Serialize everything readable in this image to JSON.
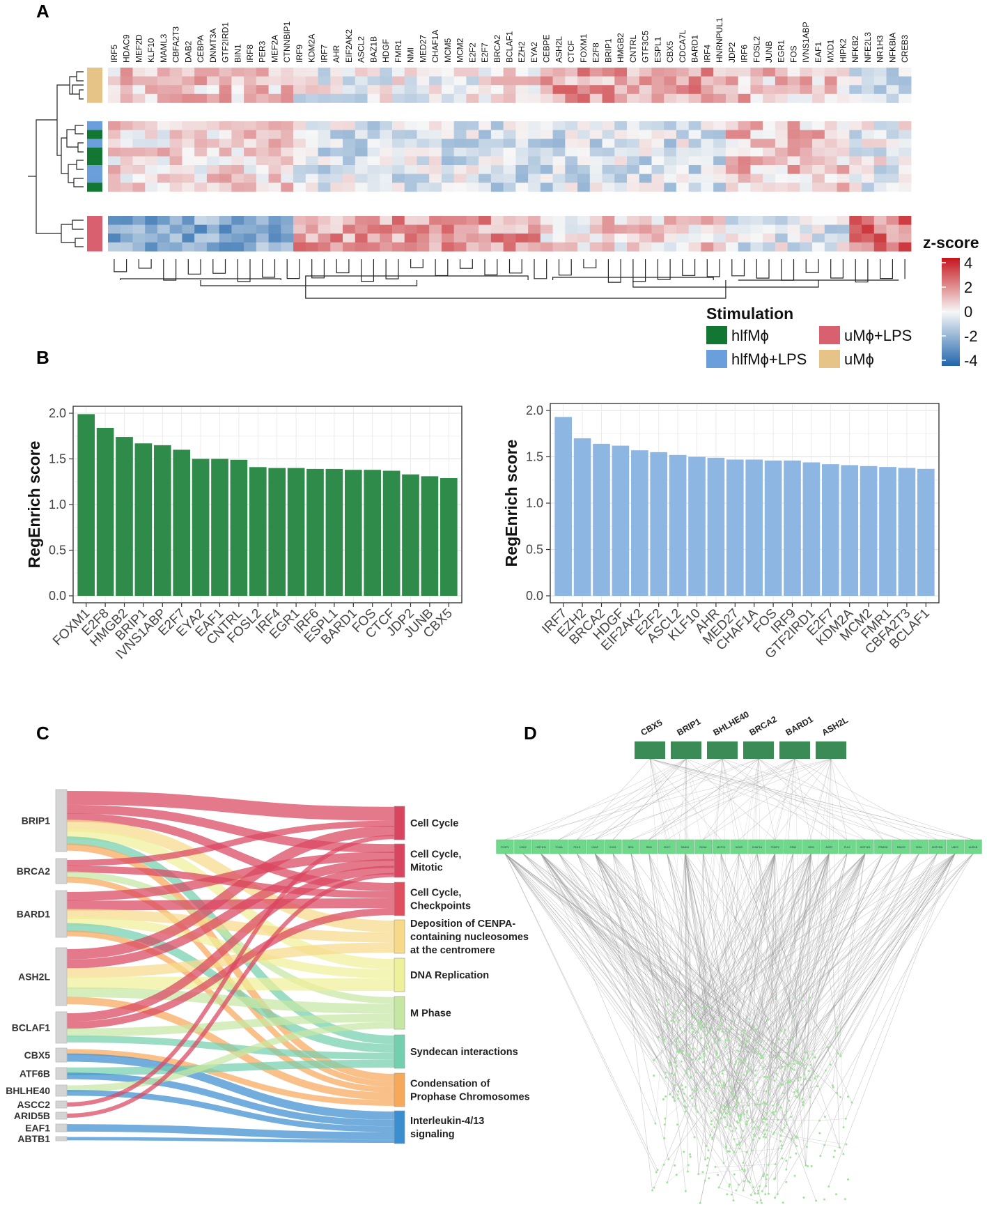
{
  "panels": {
    "a": "A",
    "b": "B",
    "c": "C",
    "d": "D"
  },
  "chart_data": [
    {
      "type": "heatmap",
      "panel": "A",
      "title": "",
      "genes": [
        "IRF5",
        "HDAC9",
        "MEF2D",
        "KLF10",
        "MAML3",
        "CBFA2T3",
        "DAB2",
        "CEBPA",
        "DNMT3A",
        "GTF2IRD1",
        "BIN1",
        "IRF8",
        "PER3",
        "MEF2A",
        "CTNNBIP1",
        "IRF9",
        "KDM2A",
        "IRF7",
        "AHR",
        "EIF2AK2",
        "ASCL2",
        "BAZ1B",
        "HDGF",
        "FMR1",
        "NMI",
        "MED27",
        "CHAF1A",
        "MCM5",
        "MCM2",
        "E2F2",
        "E2F7",
        "BRCA2",
        "BCLAF1",
        "EZH2",
        "EYA2",
        "CEBPE",
        "ASH2L",
        "CTCF",
        "FOXM1",
        "E2F8",
        "BRIP1",
        "HMGB2",
        "CNTRL",
        "GTF3C5",
        "ESPL1",
        "CBX5",
        "CDCA7L",
        "BARD1",
        "IRF4",
        "HNRNPUL1",
        "JDP2",
        "IRF6",
        "FOSL2",
        "JUNB",
        "EGR1",
        "FOS",
        "IVNS1ABP",
        "EAF1",
        "MXD1",
        "HIPK2",
        "NFKB2",
        "NFE2L3",
        "NR1H3",
        "NFKBIA",
        "CREB3"
      ],
      "sample_groups": [
        "uMϕ",
        "uMϕ",
        "uMϕ",
        "uMϕ",
        "hlfMϕ+LPS",
        "hlfMϕ",
        "hlfMϕ+LPS",
        "hlfMϕ",
        "hlfMϕ",
        "hlfMϕ+LPS",
        "hlfMϕ+LPS",
        "hlfMϕ",
        "uMϕ+LPS",
        "uMϕ+LPS",
        "uMϕ+LPS",
        "uMϕ+LPS"
      ],
      "colorbar_title": "z-score",
      "colorbar_ticks": [
        "4",
        "2",
        "0",
        "-2",
        "-4"
      ],
      "colorbar_range": [
        -4,
        4
      ],
      "colors": {
        "low": "#2166ac",
        "mid": "#f7f7f7",
        "high": "#c4161c"
      },
      "legend_title": "Stimulation",
      "legend": [
        {
          "label": "hlfMϕ",
          "color": "#117733"
        },
        {
          "label": "hlfMϕ+LPS",
          "color": "#6a9fdc"
        },
        {
          "label": "uMϕ+LPS",
          "color": "#d9606e"
        },
        {
          "label": "uMϕ",
          "color": "#e6c488"
        }
      ]
    },
    {
      "type": "bar",
      "panel": "B-left",
      "title": "",
      "xlabel": "",
      "ylabel": "RegEnrich score",
      "ylim": [
        0,
        2.0
      ],
      "yticks": [
        "0.0",
        "0.5",
        "1.0",
        "1.5",
        "2.0"
      ],
      "color": "#2e8b4a",
      "categories": [
        "FOXM1",
        "E2F8",
        "HMGB2",
        "BRIP1",
        "IVNS1ABP",
        "E2F7",
        "EYA2",
        "EAF1",
        "CNTRL",
        "FOSL2",
        "IRF4",
        "EGR1",
        "IRF6",
        "ESPL1",
        "BARD1",
        "FOS",
        "CTCF",
        "JDP2",
        "JUNB",
        "CBX5"
      ],
      "values": [
        1.99,
        1.84,
        1.74,
        1.67,
        1.65,
        1.6,
        1.5,
        1.5,
        1.49,
        1.41,
        1.4,
        1.4,
        1.39,
        1.39,
        1.38,
        1.38,
        1.37,
        1.33,
        1.31,
        1.29
      ]
    },
    {
      "type": "bar",
      "panel": "B-right",
      "title": "",
      "xlabel": "",
      "ylabel": "RegEnrich score",
      "ylim": [
        0,
        2.0
      ],
      "yticks": [
        "0.0",
        "0.5",
        "1.0",
        "1.5",
        "2.0"
      ],
      "color": "#8db6e3",
      "categories": [
        "IRF7",
        "EZH2",
        "BRCA2",
        "HDGF",
        "EIF2AK2",
        "E2F2",
        "ASCL2",
        "KLF10",
        "AHR",
        "MED27",
        "CHAF1A",
        "FOS",
        "IRF9",
        "GTF2IRD1",
        "E2F7",
        "KDM2A",
        "MCM2",
        "FMR1",
        "CBFA2T3",
        "BCLAF1"
      ],
      "values": [
        1.93,
        1.7,
        1.64,
        1.62,
        1.57,
        1.55,
        1.52,
        1.5,
        1.49,
        1.47,
        1.47,
        1.46,
        1.46,
        1.44,
        1.42,
        1.41,
        1.4,
        1.39,
        1.38,
        1.37
      ]
    },
    {
      "type": "sankey",
      "panel": "C",
      "sources": [
        "BRIP1",
        "BRCA2",
        "BARD1",
        "ASH2L",
        "BCLAF1",
        "CBX5",
        "ATF6B",
        "BHLHE40",
        "ASCC2",
        "ARID5B",
        "EAF1",
        "ABTB1"
      ],
      "targets": [
        {
          "lines": [
            "Cell Cycle"
          ],
          "color": "#d9455f"
        },
        {
          "lines": [
            "Cell Cycle,",
            "Mitotic"
          ],
          "color": "#d9455f"
        },
        {
          "lines": [
            "Cell Cycle,",
            "Checkpoints"
          ],
          "color": "#e04f5f"
        },
        {
          "lines": [
            "Deposition of CENPA-",
            "containing nucleosomes",
            "at the centromere"
          ],
          "color": "#f7d98a"
        },
        {
          "lines": [
            "DNA Replication"
          ],
          "color": "#eef09a"
        },
        {
          "lines": [
            "M Phase"
          ],
          "color": "#c6e7a4"
        },
        {
          "lines": [
            "Syndecan interactions"
          ],
          "color": "#74cfae"
        },
        {
          "lines": [
            "Condensation of",
            "Prophase Chromosomes"
          ],
          "color": "#f6a95b"
        },
        {
          "lines": [
            "Interleukin-4/13",
            "signaling"
          ],
          "color": "#3b8ed0"
        }
      ]
    },
    {
      "type": "network",
      "panel": "D",
      "hubs": [
        "CBX5",
        "BRIP1",
        "BHLHE40",
        "BRCA2",
        "BARD1",
        "ASH2L"
      ],
      "mid_nodes": [
        "FOXP1",
        "CHD2",
        "HIST1H1",
        "TCIAA",
        "POLE",
        "CKAP",
        "EXO1",
        "BRI1",
        "RBM",
        "CDC7",
        "RAD51",
        "RCNA",
        "MCF13",
        "NCKR",
        "CHAF1A",
        "PODP2",
        "RPA3",
        "GEM",
        "AGRT",
        "PLK1",
        "HIST1H4",
        "PRMOD",
        "RAD23",
        "CDK1",
        "HISTH2A",
        "UBCC",
        "AURKB"
      ],
      "colors": {
        "hub": "#3a8b55",
        "mid": "#6fd88a",
        "leaf": "#9fe39a",
        "edge": "#9a9a9a"
      }
    }
  ]
}
